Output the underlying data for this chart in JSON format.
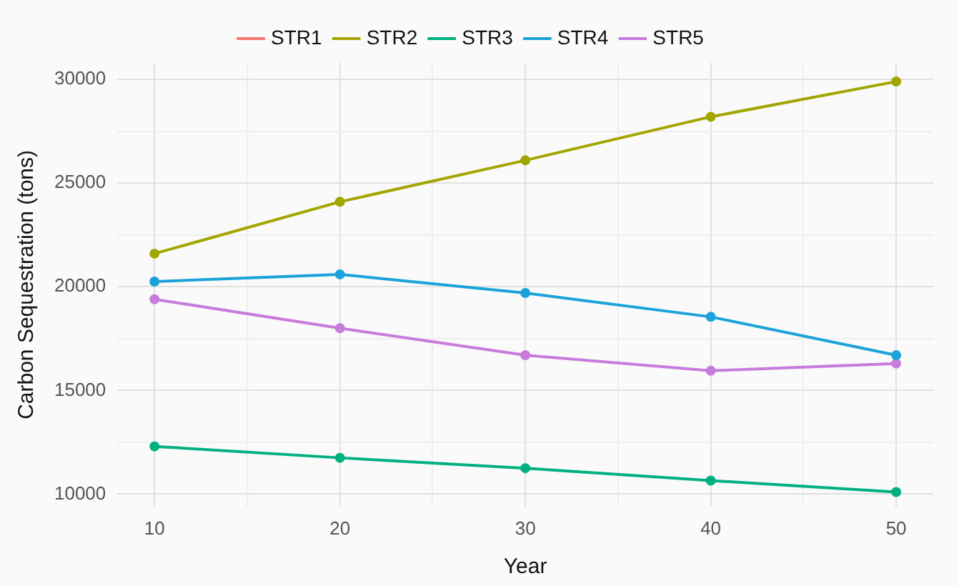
{
  "chart_data": {
    "type": "line",
    "xlabel": "Year",
    "ylabel": "Carbon Sequestration (tons)",
    "x": [
      10,
      20,
      30,
      40,
      50
    ],
    "series": [
      {
        "name": "STR1",
        "color": "#f8766d",
        "values": [
          null,
          null,
          null,
          null,
          null
        ]
      },
      {
        "name": "STR2",
        "color": "#a3a500",
        "values": [
          21600,
          24100,
          26100,
          28200,
          29900
        ]
      },
      {
        "name": "STR3",
        "color": "#00b081",
        "values": [
          12300,
          11750,
          11250,
          10650,
          10100
        ]
      },
      {
        "name": "STR4",
        "color": "#1ba3d9",
        "values": [
          20250,
          20600,
          19700,
          18550,
          16700
        ]
      },
      {
        "name": "STR5",
        "color": "#c77cdb",
        "values": [
          19400,
          18000,
          16700,
          15950,
          16300
        ]
      }
    ],
    "xlim": [
      8,
      52
    ],
    "ylim": [
      9400,
      30800
    ],
    "xticks": [
      10,
      {
        "value": 15,
        "label": null
      },
      20,
      {
        "value": 25,
        "label": null
      },
      30,
      {
        "value": 35,
        "label": null
      },
      40,
      {
        "value": 45,
        "label": null
      },
      50
    ],
    "yticks": [
      10000,
      {
        "value": 12500,
        "label": null
      },
      15000,
      {
        "value": 17500,
        "label": null
      },
      20000,
      {
        "value": 22500,
        "label": null
      },
      25000,
      {
        "value": 27500,
        "label": null
      },
      30000
    ],
    "grid": true,
    "legend": "top",
    "marker": "circle",
    "line_style": "solid"
  }
}
